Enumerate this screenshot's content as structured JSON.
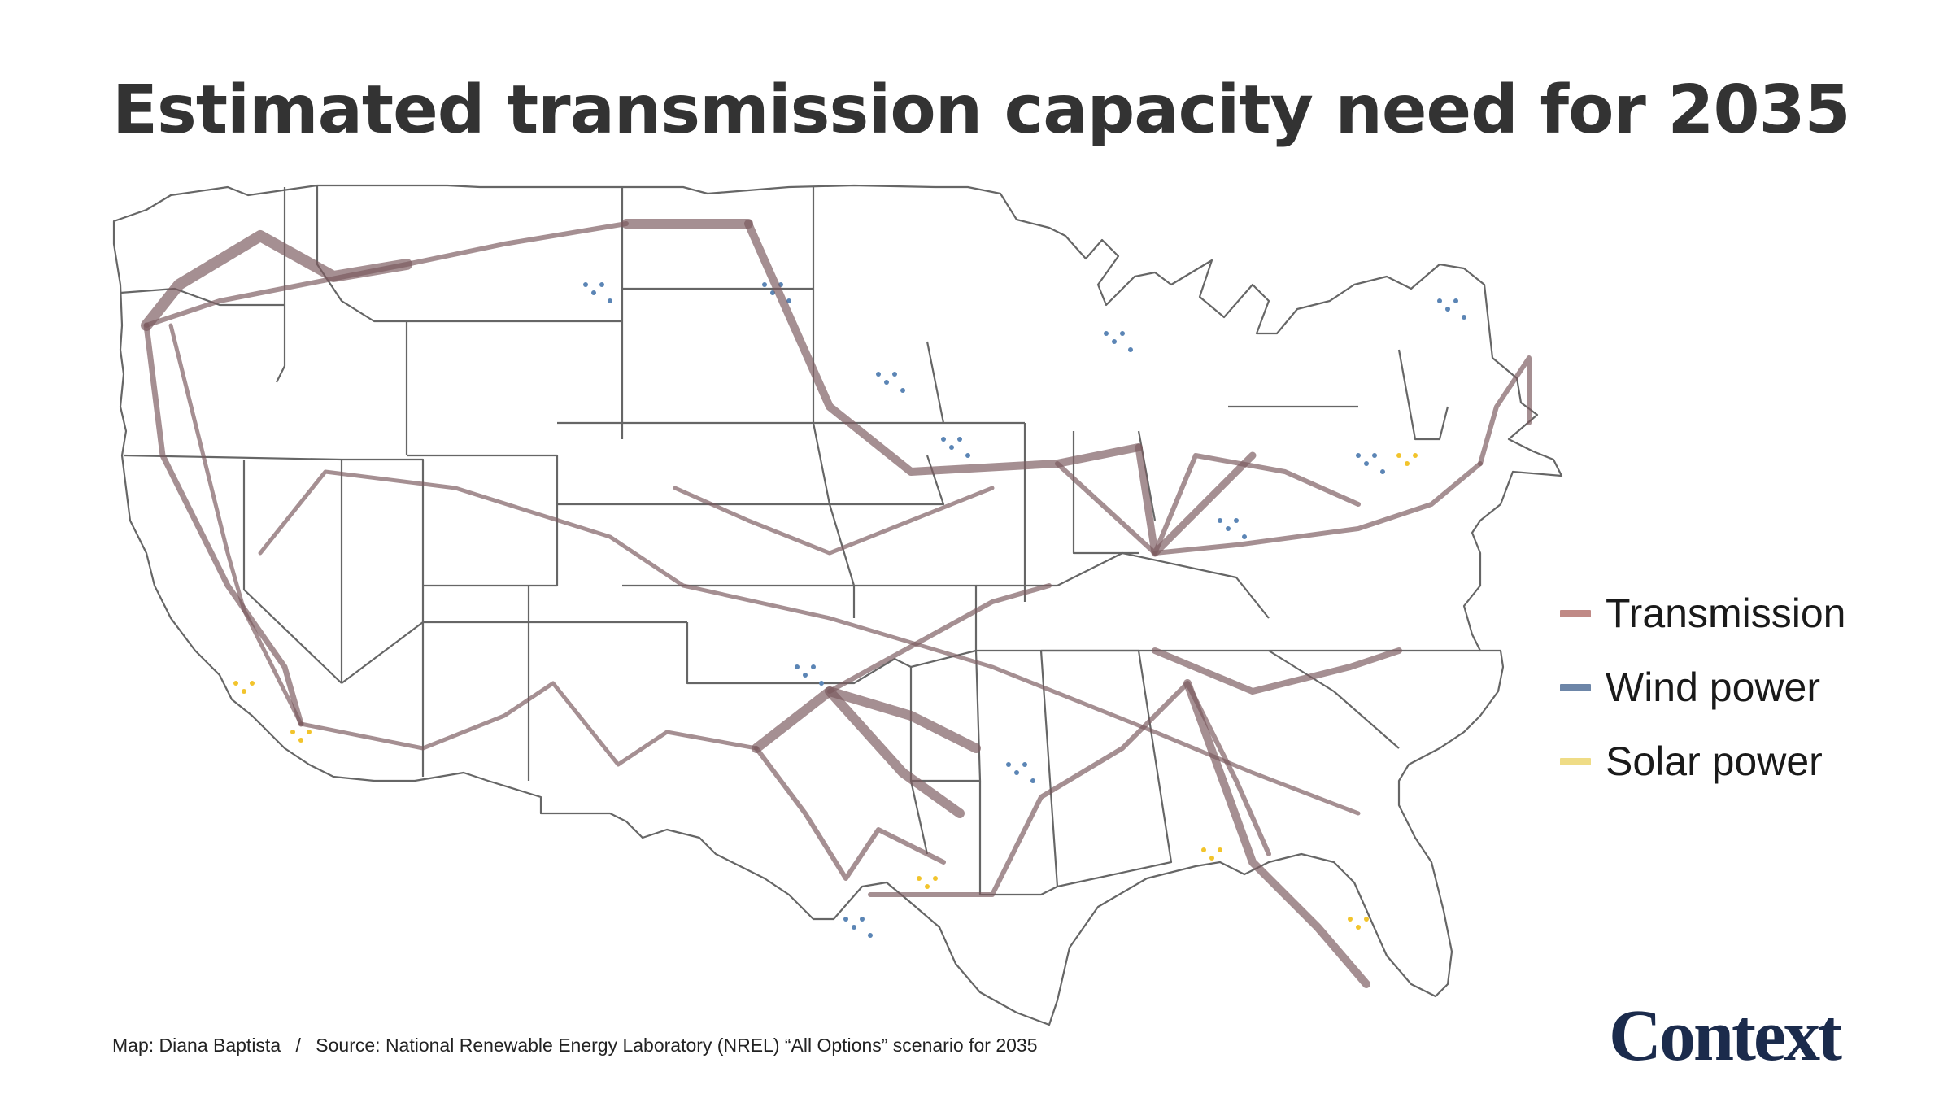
{
  "title": "Estimated transmission capacity need for 2035",
  "legend": {
    "items": [
      {
        "label": "Transmission",
        "color": "#c08a86"
      },
      {
        "label": "Wind power",
        "color": "#6d86a8"
      },
      {
        "label": "Solar power",
        "color": "#efdc86"
      }
    ]
  },
  "footer": {
    "credit": "Map: Diana Baptista",
    "separator": "/",
    "source": "Source: National Renewable Energy Laboratory (NREL) “All Options” scenario for 2035"
  },
  "brand": {
    "name": "Context",
    "color": "#1b2b4c"
  },
  "colors": {
    "transmission_line": "#7a5a5f",
    "state_border": "#666666",
    "wind_dot": "#5b85b5",
    "solar_dot": "#f2c42c"
  }
}
